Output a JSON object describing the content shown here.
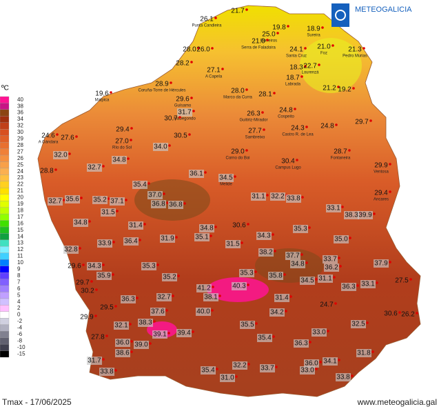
{
  "header": {
    "logo": "METEOGALICIA"
  },
  "legend": {
    "unit": "ºC",
    "labels": [
      "40",
      "38",
      "36",
      "34",
      "32",
      "30",
      "29",
      "28",
      "27",
      "26",
      "25",
      "24",
      "23",
      "22",
      "21",
      "20",
      "19",
      "18",
      "17",
      "16",
      "15",
      "14",
      "13",
      "12",
      "11",
      "10",
      "9",
      "8",
      "7",
      "6",
      "5",
      "4",
      "2",
      "0",
      "-2",
      "-4",
      "-6",
      "-8",
      "-10",
      "-15"
    ],
    "colors": [
      "#ff1493",
      "#c71585",
      "#8b4513",
      "#a0300f",
      "#c0401a",
      "#d85020",
      "#e06028",
      "#e87030",
      "#f08038",
      "#f59040",
      "#f8a048",
      "#fbb050",
      "#ffc040",
      "#ffd020",
      "#ffe000",
      "#ffff00",
      "#e0ff00",
      "#c0ff00",
      "#90ff00",
      "#40e000",
      "#20c020",
      "#10a040",
      "#40e0c0",
      "#80f0ff",
      "#40d0ff",
      "#0080ff",
      "#0000ff",
      "#6040ff",
      "#8060ff",
      "#a080ff",
      "#c0a0ff",
      "#d0c0ff",
      "#ffc0ff",
      "#ffffff",
      "#d0d0e0",
      "#b0b0c0",
      "#808090",
      "#606070",
      "#404050",
      "#000000"
    ]
  },
  "stations": [
    {
      "value": "26.1",
      "name": "Punta Candieira"
    },
    {
      "value": "21.7"
    },
    {
      "value": "19.8"
    },
    {
      "value": "18.9",
      "name": "Sureira"
    },
    {
      "value": "25.0",
      "name": "Borreiros"
    },
    {
      "value": "21.0",
      "name": "Serra de Faladoira"
    },
    {
      "value": "28.0"
    },
    {
      "value": "26.0"
    },
    {
      "value": "24.1",
      "name": "Santa Cruz"
    },
    {
      "value": "21.0",
      "name": "Foz"
    },
    {
      "value": "21.3",
      "name": "Pedro Murias"
    },
    {
      "value": "28.2"
    },
    {
      "value": "27.1",
      "name": "A Capela"
    },
    {
      "value": "18.3"
    },
    {
      "value": "22.7",
      "name": "Lourenzá"
    },
    {
      "value": "18.7",
      "name": "Labrada"
    },
    {
      "value": "28.9",
      "name": "Coruña-Torre de Hércules"
    },
    {
      "value": "28.0",
      "name": "Marco da Curra"
    },
    {
      "value": "28.1"
    },
    {
      "value": "21.2"
    },
    {
      "value": "19.2"
    },
    {
      "value": "19.6",
      "name": "Malpica"
    },
    {
      "value": "29.6",
      "name": "Guísamo"
    },
    {
      "value": "31.7",
      "name": "Mabegondo"
    },
    {
      "value": "30.7"
    },
    {
      "value": "26.3",
      "name": "Guitiriz-Mirador"
    },
    {
      "value": "24.8",
      "name": "Cospeito"
    },
    {
      "value": "29.7"
    },
    {
      "value": "29.4"
    },
    {
      "value": "27.7",
      "name": "Sambreixo"
    },
    {
      "value": "24.3",
      "name": "Castro R. de Lea"
    },
    {
      "value": "24.8"
    },
    {
      "value": "30.5"
    },
    {
      "value": "24.6",
      "name": "A Gándara"
    },
    {
      "value": "27.6"
    },
    {
      "value": "27.0",
      "name": "Río do Sol"
    },
    {
      "value": "34.0"
    },
    {
      "value": "29.0",
      "name": "Corno do Boi"
    },
    {
      "value": "28.7",
      "name": "Fontaneira"
    },
    {
      "value": "32.0"
    },
    {
      "value": "30.4",
      "name": "Campus Lugo"
    },
    {
      "value": "34.8"
    },
    {
      "value": "29.9",
      "name": "Ventosa"
    },
    {
      "value": "32.7"
    },
    {
      "value": "28.8"
    },
    {
      "value": "36.1"
    },
    {
      "value": "34.5",
      "name": "Melide"
    },
    {
      "value": "35.4"
    },
    {
      "value": "29.4",
      "name": "Ancares"
    },
    {
      "value": "32.7"
    },
    {
      "value": "35.6"
    },
    {
      "value": "35.2"
    },
    {
      "value": "37.1"
    },
    {
      "value": "37.0"
    },
    {
      "value": "36.8"
    },
    {
      "value": "36.8"
    },
    {
      "value": "31.1"
    },
    {
      "value": "32.2"
    },
    {
      "value": "33.8"
    },
    {
      "value": "33.1"
    },
    {
      "value": "31.5"
    },
    {
      "value": "38.3"
    },
    {
      "value": "39.9"
    },
    {
      "value": "34.8"
    },
    {
      "value": "34.8"
    },
    {
      "value": "30.6"
    },
    {
      "value": "35.3"
    },
    {
      "value": "31.4"
    },
    {
      "value": "35.1"
    },
    {
      "value": "34.3"
    },
    {
      "value": "35.0"
    },
    {
      "value": "36.4"
    },
    {
      "value": "31.9"
    },
    {
      "value": "33.9"
    },
    {
      "value": "31.5"
    },
    {
      "value": "32.8"
    },
    {
      "value": "37.7"
    },
    {
      "value": "34.8"
    },
    {
      "value": "38.2"
    },
    {
      "value": "33.7"
    },
    {
      "value": "36.2"
    },
    {
      "value": "37.9"
    },
    {
      "value": "29.6"
    },
    {
      "value": "34.3"
    },
    {
      "value": "35.3"
    },
    {
      "value": "35.9"
    },
    {
      "value": "35.8"
    },
    {
      "value": "35.2"
    },
    {
      "value": "35.3"
    },
    {
      "value": "34.5"
    },
    {
      "value": "31.1"
    },
    {
      "value": "33.1"
    },
    {
      "value": "36.3"
    },
    {
      "value": "27.5"
    },
    {
      "value": "29.7"
    },
    {
      "value": "41.2"
    },
    {
      "value": "40.3"
    },
    {
      "value": "30.2"
    },
    {
      "value": "38.1"
    },
    {
      "value": "36.3"
    },
    {
      "value": "32.7"
    },
    {
      "value": "31.4"
    },
    {
      "value": "24.7"
    },
    {
      "value": "29.5"
    },
    {
      "value": "40.0"
    },
    {
      "value": "37.6"
    },
    {
      "value": "34.2"
    },
    {
      "value": "30.6"
    },
    {
      "value": "26.2"
    },
    {
      "value": "29.9"
    },
    {
      "value": "32.1"
    },
    {
      "value": "38.3"
    },
    {
      "value": "35.5"
    },
    {
      "value": "32.5"
    },
    {
      "value": "39.1"
    },
    {
      "value": "39.4"
    },
    {
      "value": "27.8"
    },
    {
      "value": "33.0"
    },
    {
      "value": "35.4"
    },
    {
      "value": "36.0"
    },
    {
      "value": "39.0"
    },
    {
      "value": "36.3"
    },
    {
      "value": "38.6"
    },
    {
      "value": "31.8"
    },
    {
      "value": "31.7"
    },
    {
      "value": "35.4"
    },
    {
      "value": "32.2"
    },
    {
      "value": "33.7"
    },
    {
      "value": "36.0"
    },
    {
      "value": "34.1"
    },
    {
      "value": "33.8"
    },
    {
      "value": "31.0"
    },
    {
      "value": "33.8"
    },
    {
      "value": "33.0"
    }
  ],
  "footer": {
    "left": "Tmax - 17/06/2025",
    "right": "www.meteogalicia.gal"
  }
}
